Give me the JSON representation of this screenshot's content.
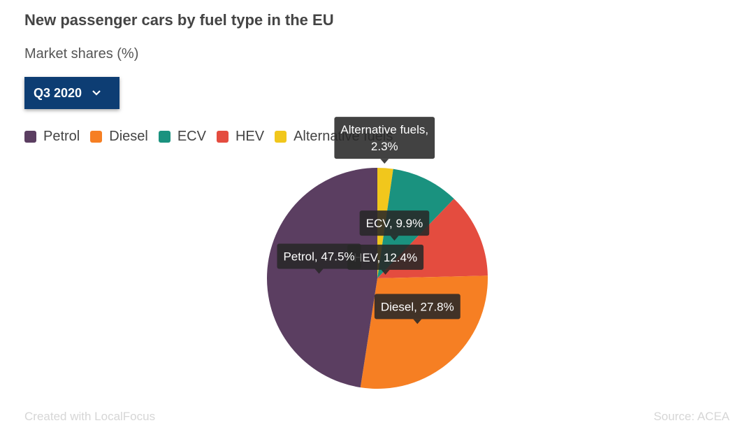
{
  "header": {
    "title": "New passenger cars by fuel type in the EU",
    "subtitle": "Market shares (%)"
  },
  "selector": {
    "label": "Q3 2020",
    "icon": "chevron-down-icon"
  },
  "legend": [
    {
      "label": "Petrol",
      "color": "#5b3e61"
    },
    {
      "label": "Diesel",
      "color": "#f67f23"
    },
    {
      "label": "ECV",
      "color": "#1a927f"
    },
    {
      "label": "HEV",
      "color": "#e44c3f"
    },
    {
      "label": "Alternative fuels",
      "color": "#f1c71c"
    }
  ],
  "chart_data": {
    "type": "pie",
    "title": "New passenger cars by fuel type in the EU",
    "subtitle": "Market shares (%)",
    "period": "Q3 2020",
    "unit": "%",
    "slices": [
      {
        "label": "Alternative fuels",
        "value": 2.3,
        "color": "#f1c71c",
        "tooltip": [
          "Alternative fuels,",
          "2.3%"
        ]
      },
      {
        "label": "ECV",
        "value": 9.9,
        "color": "#1a927f",
        "tooltip": [
          "ECV, 9.9%"
        ]
      },
      {
        "label": "HEV",
        "value": 12.4,
        "color": "#e44c3f",
        "tooltip": [
          "HEV, 12.4%"
        ]
      },
      {
        "label": "Diesel",
        "value": 27.8,
        "color": "#f67f23",
        "tooltip": [
          "Diesel, 27.8%"
        ]
      },
      {
        "label": "Petrol",
        "value": 47.5,
        "color": "#5b3e61",
        "tooltip": [
          "Petrol, 47.5%"
        ]
      }
    ]
  },
  "footer": {
    "credit": "Created with LocalFocus",
    "source": "Source: ACEA"
  }
}
